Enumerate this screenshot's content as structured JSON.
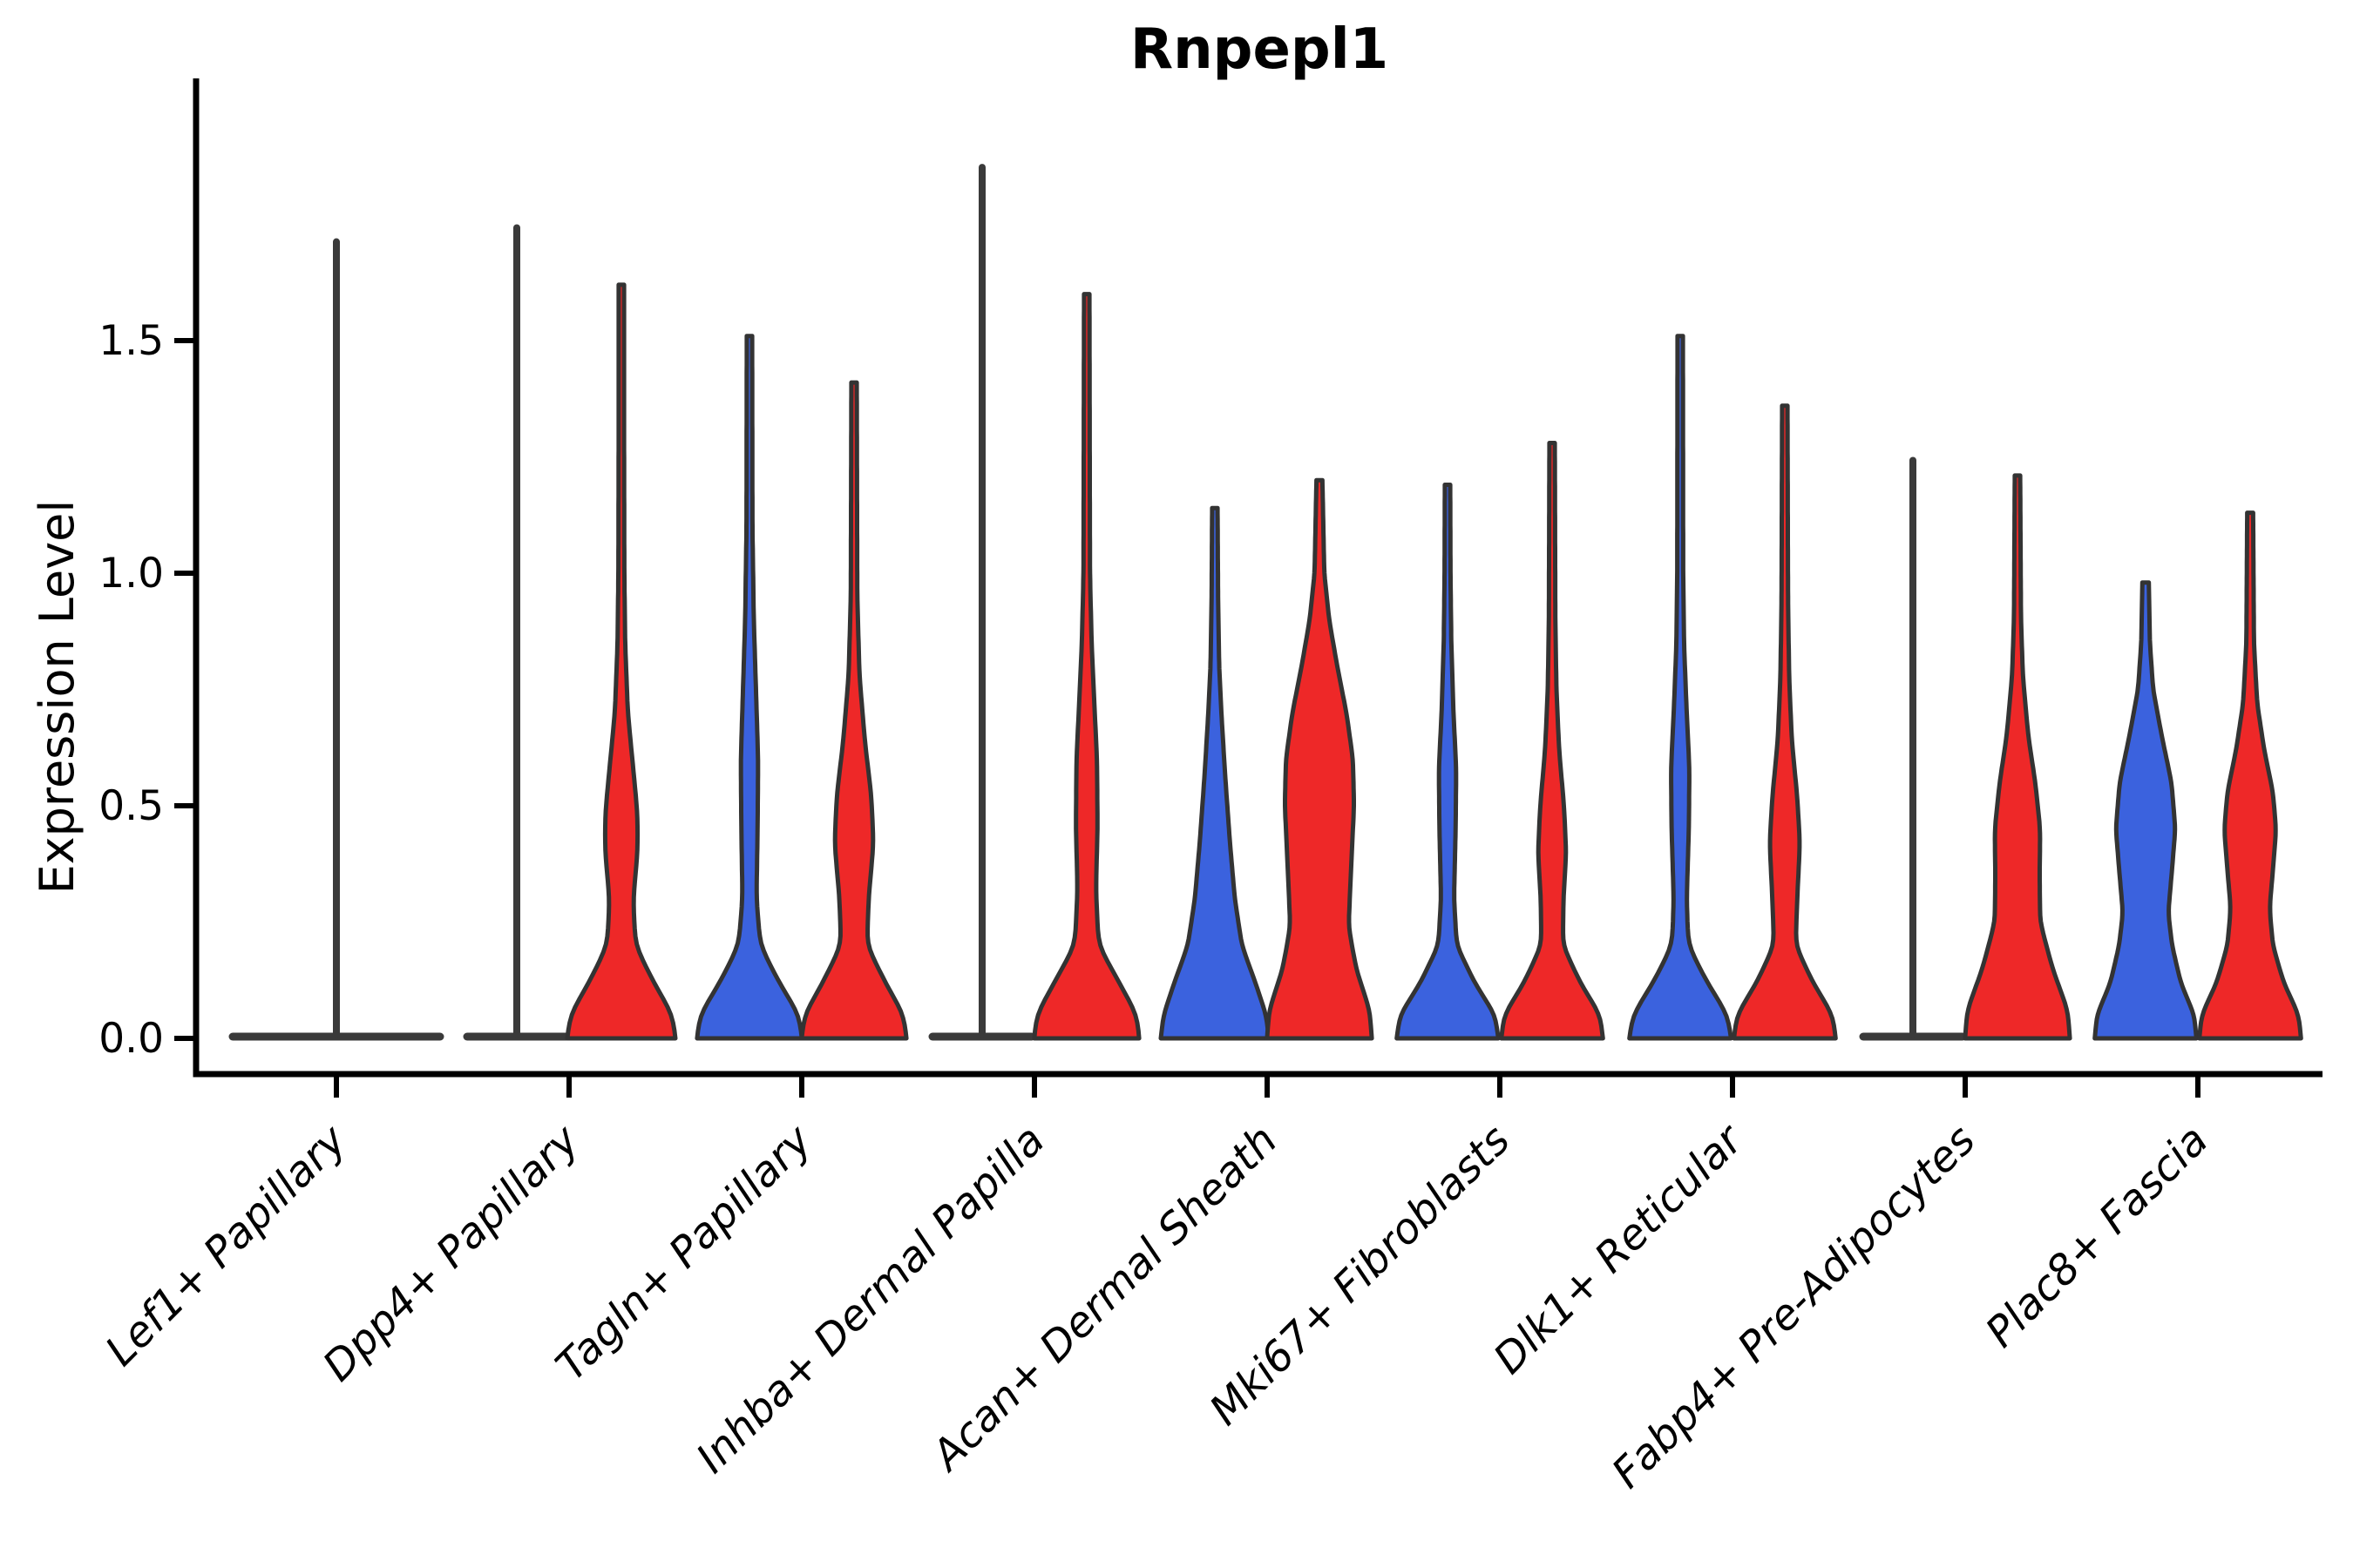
{
  "chart_data": {
    "type": "violin",
    "title": "Rnpepl1",
    "ylabel": "Expression Level",
    "xlabel": "",
    "ylim": [
      -0.09,
      2.06
    ],
    "yticks": [
      0.0,
      0.5,
      1.0,
      1.5
    ],
    "yticklabels": [
      "0.0",
      "0.5",
      "1.0",
      "1.5"
    ],
    "grid": false,
    "legend": "none",
    "x_tick_label_rotation_deg": 45,
    "colors": {
      "blue_fill": "#3B62DE",
      "red_fill": "#EE2828",
      "violin_outline": "#333333",
      "collapsed_line": "#3A3A3A",
      "axis": "#000000",
      "background": "#FFFFFF"
    },
    "categories": [
      "Lef1+ Papillary",
      "Dpp4+ Papillary",
      "Tagln+ Papillary",
      "Inhba+ Dermal Papilla",
      "Acan+ Dermal Sheath",
      "Mki67+ Fibroblasts",
      "Dlk1+ Reticular",
      "Fabp4+ Pre-Adipocytes",
      "Plac8+ Fascia"
    ],
    "violins": [
      {
        "category": "Lef1+ Papillary",
        "items": [
          {
            "side": "center",
            "style": "collapsed",
            "span": 2,
            "max": 1.72
          }
        ]
      },
      {
        "category": "Dpp4+ Papillary",
        "items": [
          {
            "side": "left",
            "style": "collapsed",
            "span": 1,
            "max": 1.75
          },
          {
            "side": "right",
            "style": "violin",
            "color": "red_fill",
            "max": 1.62,
            "profile": [
              [
                0,
                1.0
              ],
              [
                0.05,
                0.95
              ],
              [
                0.12,
                0.6
              ],
              [
                0.2,
                0.26
              ],
              [
                0.3,
                0.22
              ],
              [
                0.4,
                0.3
              ],
              [
                0.48,
                0.3
              ],
              [
                0.58,
                0.22
              ],
              [
                0.7,
                0.12
              ],
              [
                0.85,
                0.07
              ],
              [
                1.0,
                0.055
              ],
              [
                1.3,
                0.05
              ],
              [
                1.62,
                0.05
              ]
            ]
          }
        ]
      },
      {
        "category": "Tagln+ Papillary",
        "items": [
          {
            "side": "left",
            "style": "violin",
            "color": "blue_fill",
            "max": 1.51,
            "profile": [
              [
                0,
                0.97
              ],
              [
                0.05,
                0.92
              ],
              [
                0.12,
                0.55
              ],
              [
                0.2,
                0.2
              ],
              [
                0.3,
                0.13
              ],
              [
                0.45,
                0.15
              ],
              [
                0.6,
                0.16
              ],
              [
                0.75,
                0.12
              ],
              [
                0.9,
                0.08
              ],
              [
                1.1,
                0.055
              ],
              [
                1.51,
                0.05
              ]
            ]
          },
          {
            "side": "right",
            "style": "violin",
            "color": "red_fill",
            "max": 1.41,
            "profile": [
              [
                0,
                0.97
              ],
              [
                0.05,
                0.92
              ],
              [
                0.12,
                0.58
              ],
              [
                0.2,
                0.24
              ],
              [
                0.3,
                0.27
              ],
              [
                0.42,
                0.36
              ],
              [
                0.52,
                0.32
              ],
              [
                0.64,
                0.2
              ],
              [
                0.78,
                0.1
              ],
              [
                0.95,
                0.06
              ],
              [
                1.41,
                0.05
              ]
            ]
          }
        ]
      },
      {
        "category": "Inhba+ Dermal Papilla",
        "items": [
          {
            "side": "left",
            "style": "collapsed",
            "span": 1,
            "max": 1.88
          },
          {
            "side": "right",
            "style": "violin",
            "color": "red_fill",
            "max": 1.6,
            "profile": [
              [
                0,
                0.97
              ],
              [
                0.05,
                0.93
              ],
              [
                0.12,
                0.6
              ],
              [
                0.2,
                0.22
              ],
              [
                0.32,
                0.17
              ],
              [
                0.45,
                0.2
              ],
              [
                0.6,
                0.19
              ],
              [
                0.72,
                0.14
              ],
              [
                0.85,
                0.09
              ],
              [
                1.0,
                0.06
              ],
              [
                1.6,
                0.05
              ]
            ]
          }
        ]
      },
      {
        "category": "Acan+ Dermal Sheath",
        "items": [
          {
            "side": "left",
            "style": "violin",
            "color": "blue_fill",
            "max": 1.14,
            "profile": [
              [
                0,
                1.0
              ],
              [
                0.05,
                0.95
              ],
              [
                0.12,
                0.75
              ],
              [
                0.2,
                0.5
              ],
              [
                0.3,
                0.37
              ],
              [
                0.42,
                0.28
              ],
              [
                0.55,
                0.2
              ],
              [
                0.68,
                0.13
              ],
              [
                0.8,
                0.08
              ],
              [
                0.95,
                0.06
              ],
              [
                1.14,
                0.05
              ]
            ]
          },
          {
            "side": "right",
            "style": "violin",
            "color": "red_fill",
            "max": 1.2,
            "profile": [
              [
                0,
                0.97
              ],
              [
                0.06,
                0.93
              ],
              [
                0.15,
                0.68
              ],
              [
                0.24,
                0.54
              ],
              [
                0.35,
                0.58
              ],
              [
                0.5,
                0.64
              ],
              [
                0.6,
                0.62
              ],
              [
                0.7,
                0.5
              ],
              [
                0.8,
                0.33
              ],
              [
                0.9,
                0.18
              ],
              [
                1.0,
                0.09
              ],
              [
                1.2,
                0.055
              ]
            ]
          }
        ]
      },
      {
        "category": "Mki67+ Fibroblasts",
        "items": [
          {
            "side": "left",
            "style": "violin",
            "color": "blue_fill",
            "max": 1.19,
            "profile": [
              [
                0,
                0.94
              ],
              [
                0.05,
                0.88
              ],
              [
                0.12,
                0.5
              ],
              [
                0.2,
                0.17
              ],
              [
                0.3,
                0.12
              ],
              [
                0.45,
                0.15
              ],
              [
                0.58,
                0.16
              ],
              [
                0.7,
                0.11
              ],
              [
                0.85,
                0.07
              ],
              [
                1.0,
                0.055
              ],
              [
                1.19,
                0.05
              ]
            ]
          },
          {
            "side": "right",
            "style": "violin",
            "color": "red_fill",
            "max": 1.28,
            "profile": [
              [
                0,
                0.94
              ],
              [
                0.05,
                0.89
              ],
              [
                0.12,
                0.52
              ],
              [
                0.2,
                0.2
              ],
              [
                0.3,
                0.21
              ],
              [
                0.4,
                0.26
              ],
              [
                0.5,
                0.22
              ],
              [
                0.62,
                0.13
              ],
              [
                0.75,
                0.08
              ],
              [
                0.9,
                0.06
              ],
              [
                1.28,
                0.05
              ]
            ]
          }
        ]
      },
      {
        "category": "Dlk1+ Reticular",
        "items": [
          {
            "side": "left",
            "style": "violin",
            "color": "blue_fill",
            "max": 1.51,
            "profile": [
              [
                0,
                0.94
              ],
              [
                0.05,
                0.88
              ],
              [
                0.12,
                0.5
              ],
              [
                0.2,
                0.15
              ],
              [
                0.3,
                0.12
              ],
              [
                0.45,
                0.16
              ],
              [
                0.58,
                0.17
              ],
              [
                0.7,
                0.12
              ],
              [
                0.85,
                0.07
              ],
              [
                1.0,
                0.055
              ],
              [
                1.51,
                0.05
              ]
            ]
          },
          {
            "side": "right",
            "style": "violin",
            "color": "red_fill",
            "max": 1.36,
            "profile": [
              [
                0,
                0.94
              ],
              [
                0.05,
                0.89
              ],
              [
                0.12,
                0.52
              ],
              [
                0.2,
                0.2
              ],
              [
                0.3,
                0.23
              ],
              [
                0.42,
                0.28
              ],
              [
                0.52,
                0.23
              ],
              [
                0.64,
                0.13
              ],
              [
                0.78,
                0.08
              ],
              [
                0.95,
                0.06
              ],
              [
                1.36,
                0.05
              ]
            ]
          }
        ]
      },
      {
        "category": "Fabp4+ Pre-Adipocytes",
        "items": [
          {
            "side": "left",
            "style": "collapsed",
            "span": 1,
            "max": 1.25
          },
          {
            "side": "right",
            "style": "violin",
            "color": "red_fill",
            "max": 1.21,
            "profile": [
              [
                0,
                0.97
              ],
              [
                0.06,
                0.93
              ],
              [
                0.15,
                0.65
              ],
              [
                0.25,
                0.42
              ],
              [
                0.35,
                0.41
              ],
              [
                0.45,
                0.42
              ],
              [
                0.55,
                0.33
              ],
              [
                0.65,
                0.2
              ],
              [
                0.78,
                0.1
              ],
              [
                0.9,
                0.065
              ],
              [
                1.21,
                0.05
              ]
            ]
          }
        ]
      },
      {
        "category": "Plac8+ Fascia",
        "items": [
          {
            "side": "left",
            "style": "violin",
            "color": "blue_fill",
            "max": 0.98,
            "profile": [
              [
                0,
                0.94
              ],
              [
                0.05,
                0.9
              ],
              [
                0.12,
                0.65
              ],
              [
                0.2,
                0.49
              ],
              [
                0.27,
                0.42
              ],
              [
                0.35,
                0.48
              ],
              [
                0.45,
                0.55
              ],
              [
                0.55,
                0.48
              ],
              [
                0.65,
                0.3
              ],
              [
                0.75,
                0.14
              ],
              [
                0.85,
                0.08
              ],
              [
                0.98,
                0.06
              ]
            ]
          },
          {
            "side": "right",
            "style": "violin",
            "color": "red_fill",
            "max": 1.13,
            "profile": [
              [
                0,
                0.94
              ],
              [
                0.05,
                0.9
              ],
              [
                0.12,
                0.62
              ],
              [
                0.2,
                0.42
              ],
              [
                0.28,
                0.36
              ],
              [
                0.36,
                0.42
              ],
              [
                0.45,
                0.48
              ],
              [
                0.53,
                0.42
              ],
              [
                0.62,
                0.26
              ],
              [
                0.72,
                0.13
              ],
              [
                0.85,
                0.07
              ],
              [
                1.13,
                0.055
              ]
            ]
          }
        ]
      }
    ]
  }
}
